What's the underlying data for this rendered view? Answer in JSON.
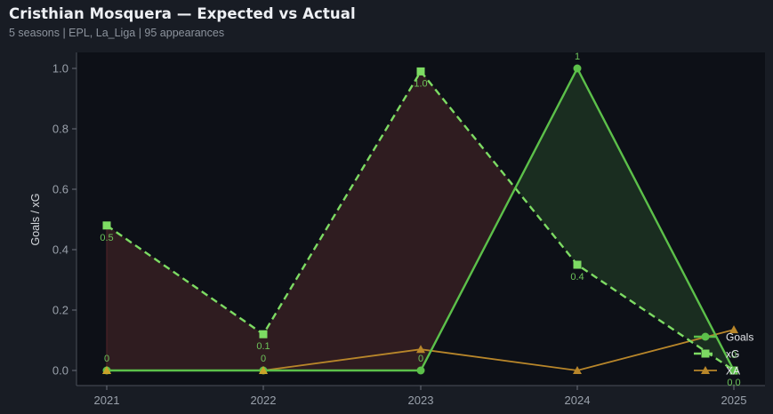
{
  "header": {
    "title": "Cristhian Mosquera — Expected vs Actual",
    "subtitle": "5 seasons | EPL, La_Liga | 95 appearances"
  },
  "colors": {
    "background": "#181c24",
    "plot_background": "#0d1017",
    "goals": "#5cc04a",
    "xg": "#7ddb63",
    "xa": "#b8862a",
    "under_fill": "#2f1c20",
    "over_fill": "#1a2d20"
  },
  "chart_data": {
    "type": "line",
    "title": "Cristhian Mosquera — Expected vs Actual",
    "subtitle": "5 seasons | EPL, La_Liga | 95 appearances",
    "xlabel": "",
    "ylabel": "Goals / xG",
    "x": [
      "2021",
      "2022",
      "2023",
      "2024",
      "2025"
    ],
    "ylim": [
      -0.05,
      1.05
    ],
    "yticks": [
      "0.0",
      "0.2",
      "0.4",
      "0.6",
      "0.8",
      "1.0"
    ],
    "grid": false,
    "legend_position": "lower right",
    "series": [
      {
        "name": "Goals",
        "values": [
          0,
          0,
          0,
          1,
          0
        ],
        "style": "solid",
        "marker": "circle",
        "labels": [
          "0",
          "0",
          "0",
          "1",
          "0"
        ]
      },
      {
        "name": "xG",
        "values": [
          0.48,
          0.12,
          0.99,
          0.35,
          0.0
        ],
        "style": "dashed",
        "marker": "square",
        "labels": [
          "0.5",
          "0.1",
          "1.0",
          "0.4",
          "0.0"
        ]
      },
      {
        "name": "XA",
        "values": [
          0.0,
          0.0,
          0.07,
          0.0,
          0.135
        ],
        "style": "solid",
        "marker": "triangle"
      }
    ],
    "fills": [
      {
        "between": [
          "Goals",
          "xG"
        ],
        "where": "xG > Goals",
        "color": "#2f1c20"
      },
      {
        "between": [
          "Goals",
          "xG"
        ],
        "where": "Goals > xG",
        "color": "#1a2d20"
      }
    ]
  },
  "legend": {
    "items": [
      "Goals",
      "xG",
      "XA"
    ]
  }
}
